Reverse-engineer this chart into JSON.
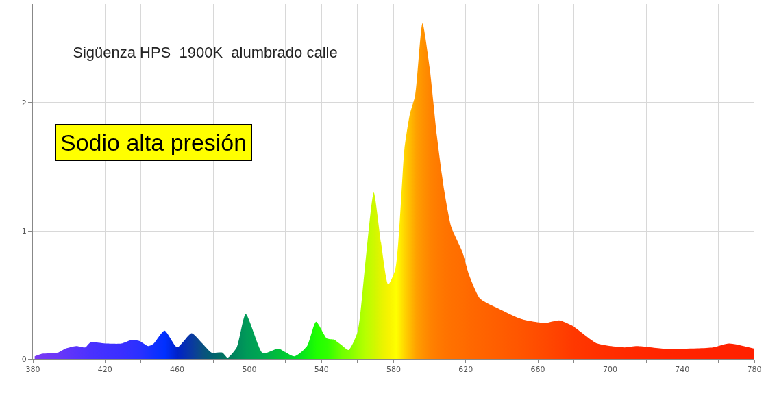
{
  "chart_data": {
    "type": "area",
    "title": "Sigüenza HPS  1900K  alumbrado calle",
    "annotations": [
      "Sodio alta presión"
    ],
    "x": [
      381,
      385,
      394,
      398,
      404,
      409,
      412,
      421,
      429,
      435,
      439,
      444,
      447,
      453,
      460,
      468,
      474,
      479,
      485,
      488,
      493,
      498,
      507,
      510,
      516,
      525,
      532,
      537,
      543,
      547,
      551,
      555,
      560,
      564,
      569,
      573,
      577,
      581,
      586,
      589,
      592,
      596,
      600,
      604,
      608,
      612,
      618,
      622,
      628,
      640,
      651,
      664,
      672,
      679,
      693,
      708,
      715,
      730,
      757,
      766,
      780
    ],
    "values": [
      0.02,
      0.04,
      0.05,
      0.08,
      0.1,
      0.09,
      0.13,
      0.12,
      0.12,
      0.15,
      0.14,
      0.1,
      0.12,
      0.22,
      0.09,
      0.2,
      0.12,
      0.05,
      0.05,
      0.01,
      0.09,
      0.35,
      0.05,
      0.05,
      0.08,
      0.02,
      0.1,
      0.29,
      0.16,
      0.15,
      0.11,
      0.07,
      0.21,
      0.7,
      1.3,
      0.91,
      0.58,
      0.7,
      1.64,
      1.91,
      2.06,
      2.62,
      2.27,
      1.74,
      1.32,
      1.03,
      0.84,
      0.65,
      0.47,
      0.38,
      0.31,
      0.28,
      0.3,
      0.26,
      0.12,
      0.09,
      0.1,
      0.08,
      0.09,
      0.12,
      0.08
    ],
    "colors": [
      "#7b3cf0",
      "#7438f5",
      "#6a36f8",
      "#6235fa",
      "#5833fc",
      "#5032fd",
      "#4a31fe",
      "#4030ff",
      "#3a2eff",
      "#3030ff",
      "#2a30ff",
      "#1a30ff",
      "#1030ff",
      "#0030ff",
      "#0022c8",
      "#0a3aa0",
      "#0a5080",
      "#006070",
      "#007060",
      "#007a5e",
      "#008a5c",
      "#009a58",
      "#00a850",
      "#00b048",
      "#00c038",
      "#00d828",
      "#10f010",
      "#20ff00",
      "#30ff00",
      "#50ff00",
      "#70ff00",
      "#80ff00",
      "#a0ff00",
      "#b8ff00",
      "#d0f800",
      "#e8f400",
      "#f8f400",
      "#ffff00",
      "#ffd000",
      "#ffb800",
      "#ffa000",
      "#ff9000",
      "#ff8200",
      "#ff7a00",
      "#ff7400",
      "#ff7000",
      "#ff6c00",
      "#ff6800",
      "#ff6400",
      "#ff5c00",
      "#ff5400",
      "#ff4800",
      "#ff4000",
      "#ff3800",
      "#ff3000",
      "#ff2a00",
      "#ff2800",
      "#ff2400",
      "#ff2200",
      "#ff2200",
      "#ff2000"
    ],
    "xlim": [
      380,
      780
    ],
    "xticks": [
      380,
      {
        "value": 400,
        "label": null
      },
      420,
      {
        "value": 440,
        "label": null
      },
      460,
      {
        "value": 480,
        "label": null
      },
      500,
      {
        "value": 520,
        "label": null
      },
      540,
      {
        "value": 560,
        "label": null
      },
      580,
      {
        "value": 600,
        "label": null
      },
      620,
      {
        "value": 640,
        "label": null
      },
      660,
      {
        "value": 680,
        "label": null
      },
      700,
      {
        "value": 720,
        "label": null
      },
      740,
      {
        "value": 760,
        "label": null
      },
      780
    ],
    "ylim": [
      0,
      2.77
    ],
    "yticks": [
      0,
      1,
      2
    ],
    "grid": true
  }
}
